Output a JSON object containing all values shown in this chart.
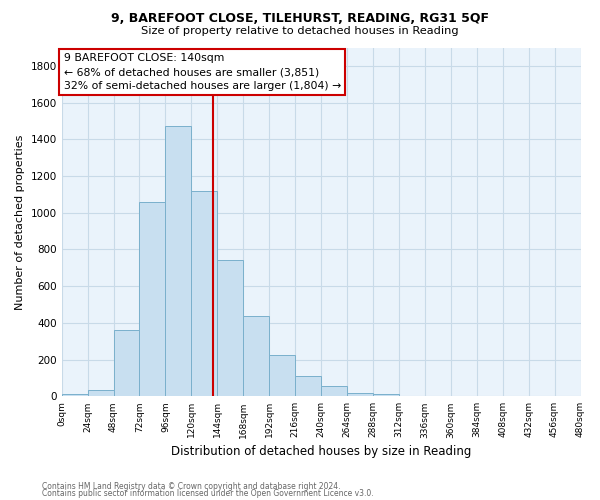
{
  "title1": "9, BAREFOOT CLOSE, TILEHURST, READING, RG31 5QF",
  "title2": "Size of property relative to detached houses in Reading",
  "xlabel": "Distribution of detached houses by size in Reading",
  "ylabel": "Number of detached properties",
  "bar_color": "#c8dff0",
  "bar_edge_color": "#7ab0cc",
  "plot_bg_color": "#eaf3fb",
  "vline_x": 140,
  "vline_color": "#cc0000",
  "annotation_line1": "9 BAREFOOT CLOSE: 140sqm",
  "annotation_line2": "← 68% of detached houses are smaller (3,851)",
  "annotation_line3": "32% of semi-detached houses are larger (1,804) →",
  "bin_edges": [
    0,
    24,
    48,
    72,
    96,
    120,
    144,
    168,
    192,
    216,
    240,
    264,
    288,
    312,
    336,
    360,
    384,
    408,
    432,
    456,
    480
  ],
  "counts": [
    15,
    35,
    360,
    1060,
    1470,
    1120,
    740,
    435,
    225,
    110,
    55,
    20,
    10,
    3,
    1,
    0,
    0,
    0,
    0,
    0
  ],
  "ylim": [
    0,
    1900
  ],
  "yticks": [
    0,
    200,
    400,
    600,
    800,
    1000,
    1200,
    1400,
    1600,
    1800
  ],
  "footer1": "Contains HM Land Registry data © Crown copyright and database right 2024.",
  "footer2": "Contains public sector information licensed under the Open Government Licence v3.0.",
  "box_facecolor": "#ffffff",
  "box_edge_color": "#cc0000",
  "grid_color": "#c8dae8"
}
